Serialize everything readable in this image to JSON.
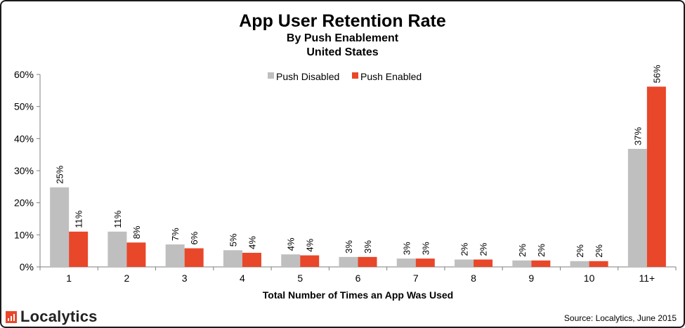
{
  "chart_data": {
    "type": "bar",
    "title": "App User Retention Rate",
    "subtitle": [
      "By Push Enablement",
      "United States"
    ],
    "xlabel": "Total Number of Times an App Was Used",
    "ylabel": "",
    "ylim": [
      0,
      60
    ],
    "yticks": [
      "0%",
      "10%",
      "20%",
      "30%",
      "40%",
      "50%",
      "60%"
    ],
    "categories": [
      "1",
      "2",
      "3",
      "4",
      "5",
      "6",
      "7",
      "8",
      "9",
      "10",
      "11+"
    ],
    "legend_position": "top-center",
    "series": [
      {
        "name": "Push Disabled",
        "color": "#bfbfbf",
        "values": [
          24.8,
          11,
          7,
          5.2,
          3.9,
          3.1,
          2.6,
          2.3,
          2,
          1.8,
          36.8
        ],
        "labels": [
          "25%",
          "11%",
          "7%",
          "5%",
          "4%",
          "3%",
          "3%",
          "2%",
          "2%",
          "2%",
          "37%"
        ]
      },
      {
        "name": "Push Enabled",
        "color": "#e8472a",
        "values": [
          11,
          7.6,
          5.8,
          4.4,
          3.6,
          3.1,
          2.6,
          2.3,
          2,
          1.8,
          56.2
        ],
        "labels": [
          "11%",
          "8%",
          "6%",
          "4%",
          "4%",
          "3%",
          "3%",
          "2%",
          "2%",
          "2%",
          "56%"
        ]
      }
    ]
  },
  "footer": {
    "logo_text": "Localytics",
    "source": "Source: Localytics, June 2015"
  }
}
